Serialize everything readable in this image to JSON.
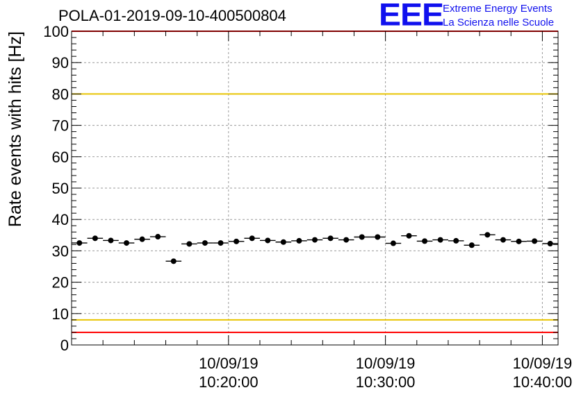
{
  "title": "POLA-01-2019-09-10-400500804",
  "logo": {
    "mark": "EEE",
    "line1": "Extreme Energy Events",
    "line2": "La Scienza nelle Scuole",
    "color": "#1010ee"
  },
  "chart_data": {
    "type": "scatter",
    "title": "POLA-01-2019-09-10-400500804",
    "ylabel": "Rate events with hits [Hz]",
    "xlabel": "",
    "ylim": [
      0,
      100
    ],
    "yticks": [
      0,
      10,
      20,
      30,
      40,
      50,
      60,
      70,
      80,
      90,
      100
    ],
    "xlim_minutes": [
      10.0,
      41.0
    ],
    "xticks": [
      {
        "minute": 20,
        "date": "10/09/19",
        "time": "10:20:00"
      },
      {
        "minute": 30,
        "date": "10/09/19",
        "time": "10:30:00"
      },
      {
        "minute": 40,
        "date": "10/09/19",
        "time": "10:40:00"
      }
    ],
    "grid": true,
    "series": [
      {
        "marker": "circle",
        "color": "#000000",
        "bin_width_minutes": 1.0,
        "points": [
          {
            "x": 10.5,
            "y": 32.5
          },
          {
            "x": 11.5,
            "y": 34.0
          },
          {
            "x": 12.5,
            "y": 33.3
          },
          {
            "x": 13.5,
            "y": 32.5
          },
          {
            "x": 14.5,
            "y": 33.7
          },
          {
            "x": 15.5,
            "y": 34.5
          },
          {
            "x": 16.5,
            "y": 26.7
          },
          {
            "x": 17.5,
            "y": 32.2
          },
          {
            "x": 18.5,
            "y": 32.5
          },
          {
            "x": 19.5,
            "y": 32.5
          },
          {
            "x": 20.5,
            "y": 33.0
          },
          {
            "x": 21.5,
            "y": 34.0
          },
          {
            "x": 22.5,
            "y": 33.3
          },
          {
            "x": 23.5,
            "y": 32.8
          },
          {
            "x": 24.5,
            "y": 33.2
          },
          {
            "x": 25.5,
            "y": 33.5
          },
          {
            "x": 26.5,
            "y": 34.0
          },
          {
            "x": 27.5,
            "y": 33.5
          },
          {
            "x": 28.5,
            "y": 34.4
          },
          {
            "x": 29.5,
            "y": 34.4
          },
          {
            "x": 30.5,
            "y": 32.4
          },
          {
            "x": 31.5,
            "y": 34.8
          },
          {
            "x": 32.5,
            "y": 33.1
          },
          {
            "x": 33.5,
            "y": 33.5
          },
          {
            "x": 34.5,
            "y": 33.2
          },
          {
            "x": 35.5,
            "y": 31.8
          },
          {
            "x": 36.5,
            "y": 35.1
          },
          {
            "x": 37.5,
            "y": 33.5
          },
          {
            "x": 38.5,
            "y": 33.0
          },
          {
            "x": 39.5,
            "y": 33.1
          },
          {
            "x": 40.5,
            "y": 32.3
          }
        ]
      }
    ],
    "reference_lines": [
      {
        "y": 100,
        "color": "#ff0000"
      },
      {
        "y": 80,
        "color": "#e8c400"
      },
      {
        "y": 8,
        "color": "#e8c400"
      },
      {
        "y": 4,
        "color": "#ff0000"
      }
    ]
  }
}
